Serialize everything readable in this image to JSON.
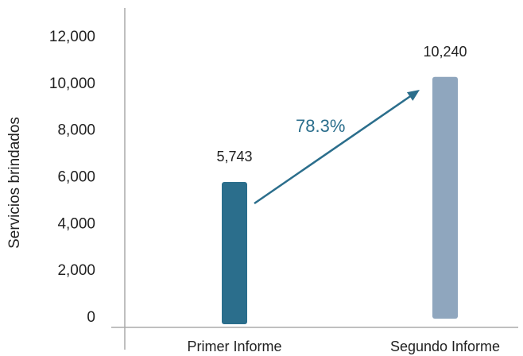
{
  "chart_data": {
    "type": "bar",
    "categories": [
      "Primer Informe",
      "Segundo Informe"
    ],
    "values": [
      5743,
      10240
    ],
    "value_labels": [
      "5,743",
      "10,240"
    ],
    "ylabel": "Servicios brindados",
    "xlabel": "",
    "ylim": [
      0,
      12000
    ],
    "yticks": [
      0,
      2000,
      4000,
      6000,
      8000,
      10000,
      12000
    ],
    "ytick_labels": [
      "0",
      "2,000",
      "4,000",
      "6,000",
      "8,000",
      "10,000",
      "12,000"
    ],
    "grid": false,
    "bar_colors": [
      "#2b6e8c",
      "#8fa6be"
    ],
    "annotation": {
      "text": "78.3%",
      "color": "#2b6e8c",
      "from_category": "Primer Informe",
      "to_category": "Segundo Informe"
    }
  }
}
